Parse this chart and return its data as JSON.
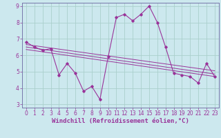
{
  "title": "",
  "xlabel": "Windchill (Refroidissement éolien,°C)",
  "ylabel": "",
  "background_color": "#cce8ee",
  "plot_bg_color": "#cce8ee",
  "grid_color": "#aacfcc",
  "line_color": "#993399",
  "spine_color": "#7777aa",
  "xlim": [
    -0.5,
    23.5
  ],
  "ylim": [
    2.8,
    9.2
  ],
  "yticks": [
    3,
    4,
    5,
    6,
    7,
    8,
    9
  ],
  "xticks": [
    0,
    1,
    2,
    3,
    4,
    5,
    6,
    7,
    8,
    9,
    10,
    11,
    12,
    13,
    14,
    15,
    16,
    17,
    18,
    19,
    20,
    21,
    22,
    23
  ],
  "main_x": [
    0,
    1,
    2,
    3,
    4,
    5,
    6,
    7,
    8,
    9,
    10,
    11,
    12,
    13,
    14,
    15,
    16,
    17,
    18,
    19,
    20,
    21,
    22,
    23
  ],
  "main_y": [
    6.8,
    6.5,
    6.3,
    6.4,
    4.8,
    5.5,
    4.9,
    3.8,
    4.1,
    3.3,
    5.9,
    8.3,
    8.5,
    8.1,
    8.5,
    9.0,
    8.0,
    6.5,
    4.9,
    4.8,
    4.7,
    4.3,
    5.5,
    4.7
  ],
  "trend1_x": [
    0,
    23
  ],
  "trend1_y": [
    6.65,
    5.05
  ],
  "trend2_x": [
    0,
    23
  ],
  "trend2_y": [
    6.5,
    4.85
  ],
  "trend3_x": [
    0,
    23
  ],
  "trend3_y": [
    6.35,
    4.7
  ],
  "xlabel_fontsize": 6.5,
  "tick_fontsize": 5.5
}
